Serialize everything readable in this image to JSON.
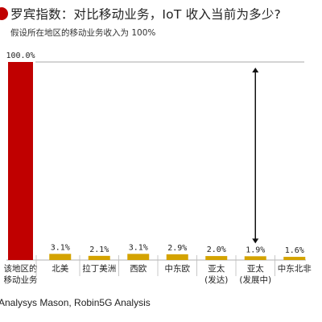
{
  "title": "罗宾指数：对比移动业务，IoT 收入当前为多少?",
  "subtitle": "假设所在地区的移动业务收入为 100%",
  "source": "Analysys Mason, Robin5G Analysis",
  "colors": {
    "accent": "#c00000",
    "highlight_bar": "#c00000",
    "bar": "#d4a300",
    "reference_line": "#aaaaaa",
    "arrow": "#111111"
  },
  "chart_data": {
    "type": "bar",
    "title": "罗宾指数：对比移动业务，IoT 收入当前为多少?",
    "subtitle": "假设所在地区的移动业务收入为 100%",
    "categories": [
      "该地区的\n移动业务",
      "北美",
      "拉丁美洲",
      "西欧",
      "中东欧",
      "亚太\n(发达)",
      "亚太\n(发展中)",
      "中东北非"
    ],
    "values": [
      100.0,
      3.1,
      2.1,
      3.1,
      2.9,
      2.0,
      1.9,
      1.6
    ],
    "value_labels": [
      "100.0%",
      "3.1%",
      "2.1%",
      "3.1%",
      "2.9%",
      "2.0%",
      "1.9%",
      "1.6%"
    ],
    "ylim": [
      0,
      100
    ],
    "grid": false,
    "annotations": [
      {
        "type": "reference-line",
        "value": 100,
        "text": ""
      },
      {
        "type": "double-arrow",
        "category": "亚太\n(发展中)",
        "from": 1.9,
        "to": 100
      }
    ]
  }
}
